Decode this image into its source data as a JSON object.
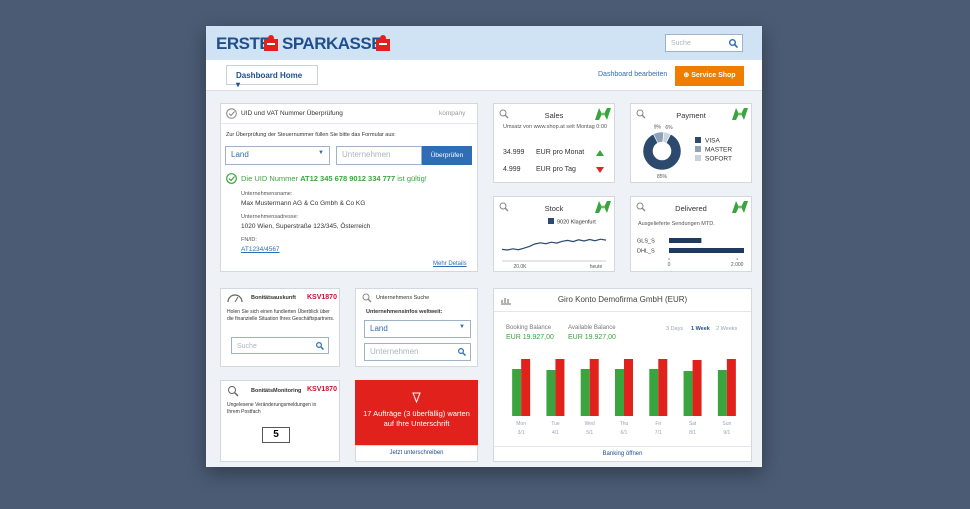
{
  "header": {
    "logo": [
      "ERSTE",
      "SPARKASSE"
    ],
    "search_placeholder": "Suche"
  },
  "nav": {
    "dashboard": "Dashboard Home",
    "edit": "Dashboard bearbeiten",
    "shop": "Service Shop"
  },
  "uid": {
    "title": "UID und VAT Nummer Überprüfung",
    "brand": "kompany",
    "instruction": "Zur Überprüfung der Steuernummer füllen Sie bitte das Formular aus:",
    "country": "Land",
    "company": "Unternehmen",
    "button": "Überprüfen",
    "result": {
      "prefix": "Die UID Nummer",
      "number": "AT12 345 678 9012 334 777",
      "suffix": "ist gültig!"
    },
    "fields": [
      {
        "label": "Unternehmensname:",
        "value": "Max Mustermann AG & Co Gmbh & Co KG"
      },
      {
        "label": "Unternehmensadresse:",
        "value": "1020 Wien, Superstraße 123/345, Österreich"
      },
      {
        "label": "FN/ID:",
        "value": "AT1234/4567"
      }
    ],
    "more": "Mehr Details"
  },
  "sales": {
    "title": "Sales",
    "subtitle": "Umsatz von www.shop.at seit Montag 0:00",
    "rows": [
      {
        "amount": "34.999",
        "label": "EUR pro Monat",
        "trend": "up"
      },
      {
        "amount": "4.999",
        "label": "EUR pro Tag",
        "trend": "down"
      }
    ]
  },
  "payment": {
    "title": "Payment",
    "chart": {
      "type": "pie",
      "categories": [
        "VISA",
        "MASTER",
        "SOFORT"
      ],
      "values": [
        85,
        9,
        6
      ],
      "value_labels": [
        "85%",
        "9%",
        "6%"
      ],
      "colors": [
        "#2c4a6e",
        "#8fa3b8",
        "#c9d3dd"
      ]
    }
  },
  "stock": {
    "title": "Stock",
    "chart": {
      "type": "line",
      "x_labels": [
        "20.0K",
        "heute"
      ],
      "ylim": [
        0,
        10
      ],
      "series": [
        {
          "name": "9020 Klagenfurt",
          "color": "#2c4a6e",
          "values": [
            3.2,
            3.0,
            3.4,
            3.1,
            3.6,
            4.2,
            5.0,
            5.4,
            5.1,
            5.6,
            5.3,
            5.9,
            6.2,
            5.8,
            6.4,
            6.0,
            6.5,
            6.1,
            6.6,
            6.3
          ]
        }
      ]
    }
  },
  "delivered": {
    "title": "Delivered",
    "subtitle": "Ausgelieferte Sendungen MTD.",
    "chart": {
      "type": "bar",
      "orientation": "horizontal",
      "categories": [
        "GLS_S",
        "DHL_S"
      ],
      "values": [
        950,
        2200
      ],
      "color": "#1f3a5f",
      "xlim": [
        0,
        2200
      ],
      "xticks": [
        0,
        {
          "value": 2000,
          "label": "2.000"
        }
      ]
    }
  },
  "credit_check": {
    "title": "Bonitätsauskunft",
    "brand": "KSV1870",
    "text": "Holen Sie sich einen fundierten Überblick über die finanzielle Situation Ihres Geschäftspartners.",
    "search": "Suche"
  },
  "company_search": {
    "title": "Unternehmens Suche",
    "subtitle": "Unternehmensinfos weltweit:",
    "country": "Land",
    "company": "Unternehmen"
  },
  "monitoring": {
    "title": "BonitätsMonitoring",
    "brand": "KSV1870",
    "text": "Ungelesene Veränderungsmeldungen in Ihrem Postfach",
    "count": "5"
  },
  "orders": {
    "text": "17 Aufträge (3 überfällig) warten auf Ihre Unterschrift",
    "link": "Jetzt unterschreiben"
  },
  "account": {
    "title": "Giro Konto Demofirma GmbH (EUR)",
    "balances": [
      {
        "label": "Booking Balance",
        "value": "EUR 19.927,00"
      },
      {
        "label": "Available Balance",
        "value": "EUR 19.927,00"
      }
    ],
    "ranges": [
      "3 Days",
      "1 Week",
      "2 Weeks"
    ],
    "active_range": 1,
    "chart": {
      "type": "bar",
      "categories": [
        "Mon",
        "Tue",
        "Wed",
        "Thu",
        "Fri",
        "Sat",
        "Sun"
      ],
      "dates": [
        "3/1",
        "4/1",
        "5/1",
        "6/1",
        "7/1",
        "8/1",
        "9/1"
      ],
      "ylim": [
        0,
        60
      ],
      "series": [
        {
          "color": "#3aa53f",
          "values": [
            47,
            46,
            47,
            47,
            47,
            45,
            46
          ]
        },
        {
          "color": "#e1211b",
          "values": [
            57,
            57,
            57,
            57,
            57,
            56,
            57
          ]
        }
      ]
    },
    "link": "Banking öffnen"
  }
}
